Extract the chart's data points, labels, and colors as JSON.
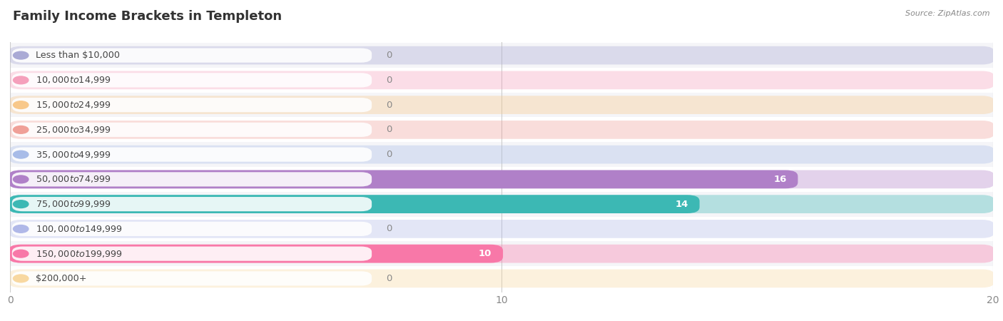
{
  "title": "Family Income Brackets in Templeton",
  "source": "Source: ZipAtlas.com",
  "categories": [
    "Less than $10,000",
    "$10,000 to $14,999",
    "$15,000 to $24,999",
    "$25,000 to $34,999",
    "$35,000 to $49,999",
    "$50,000 to $74,999",
    "$75,000 to $99,999",
    "$100,000 to $149,999",
    "$150,000 to $199,999",
    "$200,000+"
  ],
  "values": [
    0,
    0,
    0,
    0,
    0,
    16,
    14,
    0,
    10,
    0
  ],
  "bar_colors": [
    "#aaaad5",
    "#f5a0bc",
    "#f8c88a",
    "#f0a098",
    "#a8bce8",
    "#b080c8",
    "#3cb8b4",
    "#b0b8e8",
    "#f878a8",
    "#f8d8a0"
  ],
  "xlim": [
    0,
    20
  ],
  "xticks": [
    0,
    10,
    20
  ],
  "background_color": "#ffffff",
  "row_bg_odd": "#f5f5f8",
  "row_bg_even": "#ffffff",
  "title_fontsize": 13,
  "label_fontsize": 9.5
}
